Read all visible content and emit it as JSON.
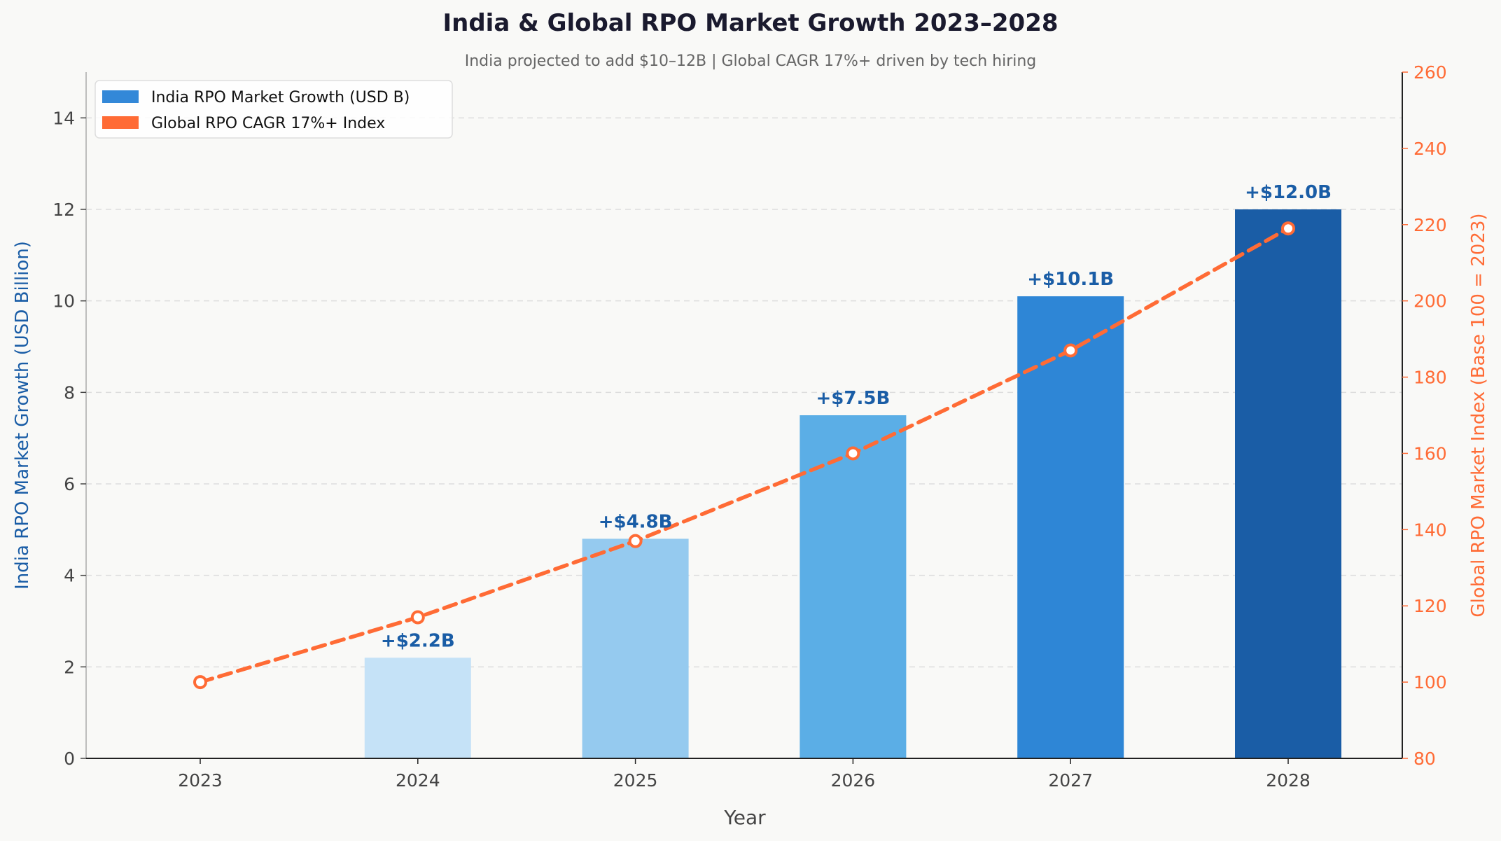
{
  "chart_data": {
    "type": "bar+line",
    "title": "India & Global RPO Market Growth 2023–2028",
    "subtitle": "India projected to add $10–12B | Global CAGR 17%+ driven by tech hiring",
    "xlabel": "Year",
    "ylabel_left": "India RPO Market Growth (USD Billion)",
    "ylabel_right": "Global RPO Market Index (Base 100 = 2023)",
    "categories": [
      "2023",
      "2024",
      "2025",
      "2026",
      "2027",
      "2028"
    ],
    "ylim_left": [
      0,
      15
    ],
    "yticks_left": [
      0,
      2,
      4,
      6,
      8,
      10,
      12,
      14
    ],
    "ylim_right": [
      80,
      260
    ],
    "yticks_right": [
      80,
      100,
      120,
      140,
      160,
      180,
      200,
      220,
      240,
      260
    ],
    "grid": "horizontal dashed",
    "legend_position": "top-left",
    "series": [
      {
        "name": "India RPO Market Growth (USD B)",
        "type": "bar",
        "axis": "left",
        "legend_color": "#3388d8",
        "values": [
          0,
          2.2,
          4.8,
          7.5,
          10.1,
          12.0
        ],
        "labels": [
          "",
          "+$2.2B",
          "+$4.8B",
          "+$7.5B",
          "+$10.1B",
          "+$12.0B"
        ],
        "colors": [
          "#e3f0fb",
          "#c5e2f7",
          "#95caef",
          "#5baee6",
          "#2e86d6",
          "#1a5da6"
        ]
      },
      {
        "name": "Global RPO CAGR 17%+ Index",
        "type": "line",
        "axis": "right",
        "color": "#ff6b35",
        "style": "dashed",
        "marker": "circle",
        "values": [
          100,
          117,
          137,
          160,
          187,
          219
        ]
      }
    ]
  }
}
